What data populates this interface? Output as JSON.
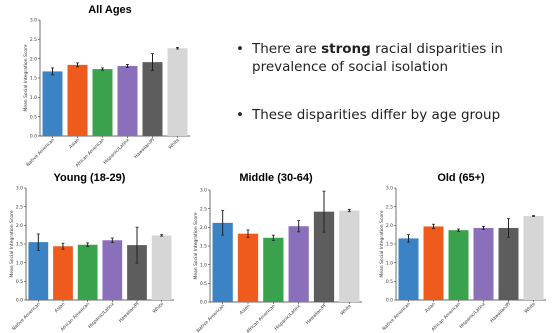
{
  "bullets": [
    {
      "pre": "There are ",
      "bold": "strong",
      "post": " racial disparities in prevalence of social isolation"
    },
    {
      "pre": "These disparities differ by age group",
      "bold": "",
      "post": ""
    }
  ],
  "colors": [
    "#3b83c4",
    "#ee5b1c",
    "#3aa14c",
    "#8a70bb",
    "#5d5d5d",
    "#d6d6d6"
  ],
  "chart_data": [
    {
      "type": "bar",
      "title": "All Ages",
      "categories": [
        "Native American",
        "Asian",
        "African American",
        "Hispanic/Latinx",
        "Hawaiian/PI",
        "White"
      ],
      "values": [
        1.67,
        1.84,
        1.73,
        1.81,
        1.91,
        2.27
      ],
      "errors": [
        0.09,
        0.05,
        0.03,
        0.04,
        0.22,
        0.02
      ],
      "ylabel": "Mean Social Integration Score",
      "ylim": [
        0,
        3.0
      ],
      "yticks": [
        "0.0",
        "0.5",
        "1.0",
        "1.5",
        "2.0",
        "2.5",
        "3.0"
      ]
    },
    {
      "type": "bar",
      "title": "Young (18-29)",
      "categories": [
        "Native American",
        "Asian",
        "African American",
        "Hispanic/Latinx",
        "Hawaiian/PI",
        "White"
      ],
      "values": [
        1.55,
        1.44,
        1.48,
        1.6,
        1.47,
        1.73
      ],
      "errors": [
        0.22,
        0.08,
        0.05,
        0.06,
        0.48,
        0.02
      ],
      "ylabel": "Mean Social Integration Score",
      "ylim": [
        0,
        3.0
      ],
      "yticks": [
        "0.0",
        "0.5",
        "1.0",
        "1.5",
        "2.0",
        "2.5",
        "3.0"
      ]
    },
    {
      "type": "bar",
      "title": "Middle (30-64)",
      "categories": [
        "Native American",
        "Asian",
        "African American",
        "Hispanic/Latinx",
        "Hawaiian/PI",
        "White"
      ],
      "values": [
        2.12,
        1.83,
        1.72,
        2.03,
        2.42,
        2.45
      ],
      "errors": [
        0.33,
        0.1,
        0.07,
        0.15,
        0.55,
        0.03
      ],
      "ylabel": "Mean Social Integration Score",
      "ylim": [
        0,
        3.0
      ],
      "yticks": [
        "0.0",
        "0.5",
        "1.0",
        "1.5",
        "2.0",
        "2.5",
        "3.0"
      ]
    },
    {
      "type": "bar",
      "title": "Old (65+)",
      "categories": [
        "Native American",
        "Asian",
        "African American",
        "Hispanic/Latinx",
        "Hawaiian/PI",
        "White"
      ],
      "values": [
        1.65,
        1.97,
        1.87,
        1.93,
        1.93,
        2.25
      ],
      "errors": [
        0.1,
        0.06,
        0.03,
        0.04,
        0.25,
        0.01
      ],
      "ylabel": "Mean Social Integration Score",
      "ylim": [
        0,
        3.0
      ],
      "yticks": [
        "0.0",
        "0.5",
        "1.0",
        "1.5",
        "2.0",
        "2.5",
        "3.0"
      ]
    }
  ]
}
